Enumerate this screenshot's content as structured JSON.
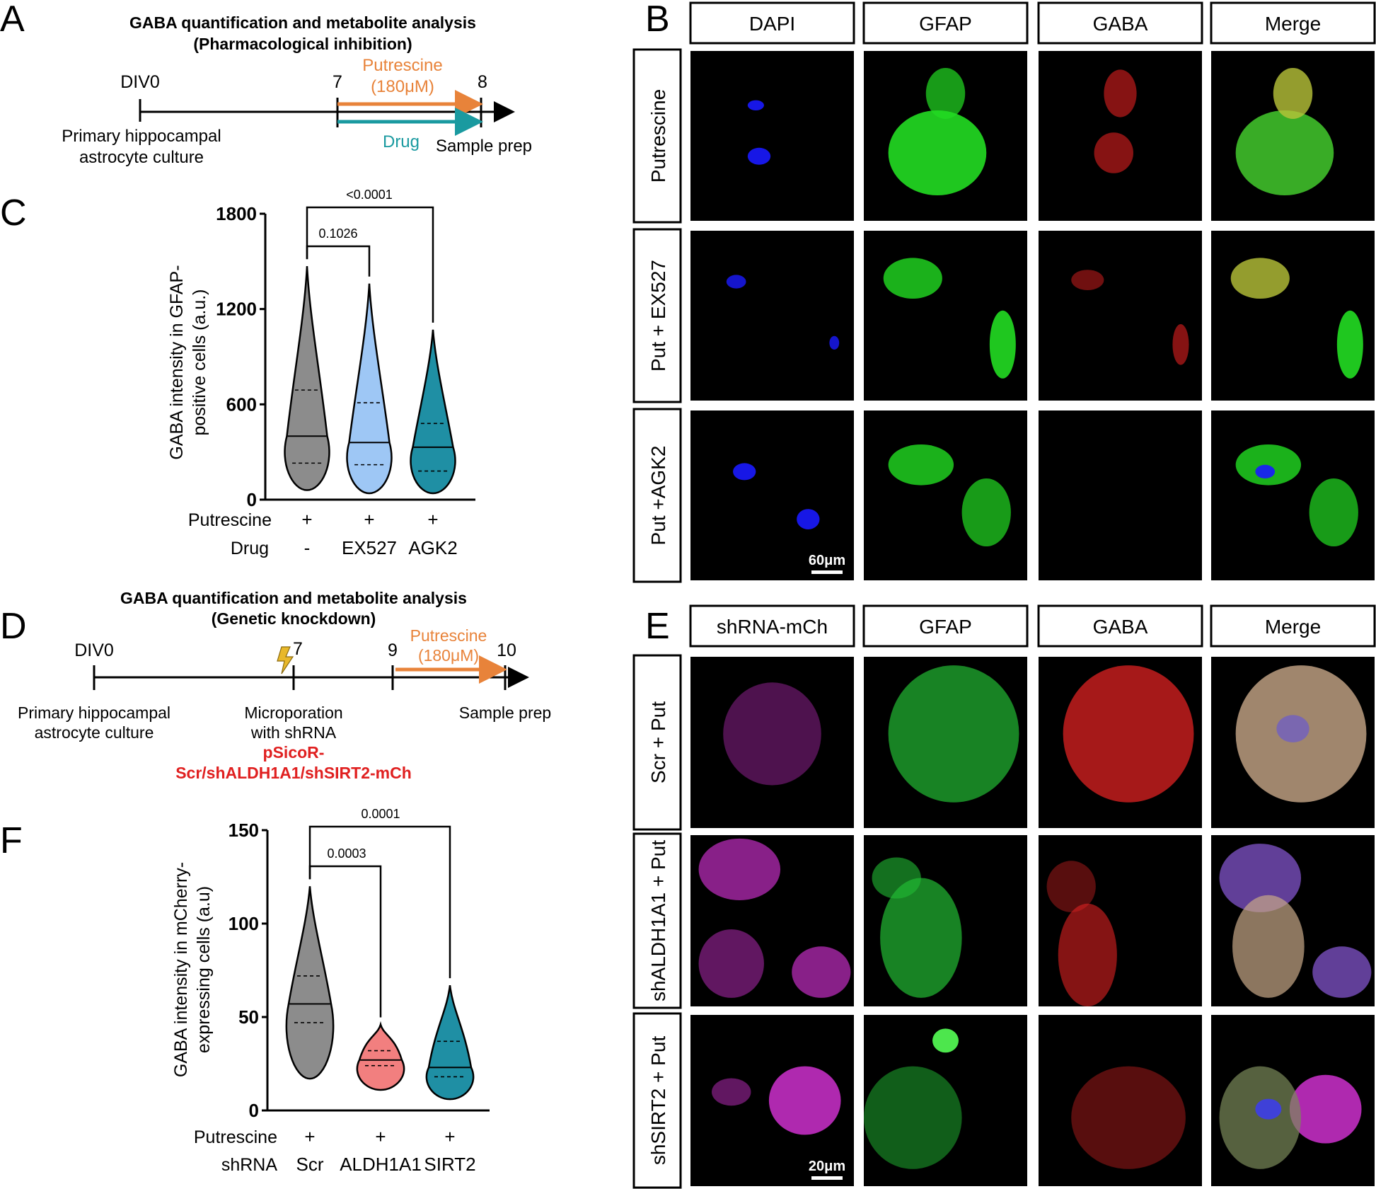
{
  "panel_letters": [
    "A",
    "B",
    "C",
    "D",
    "E",
    "F"
  ],
  "panelA": {
    "title_line1": "GABA quantification and metabolite analysis",
    "title_line2": "(Pharmacological inhibition)",
    "label_div0": "DIV0",
    "label_day7": "7",
    "label_day8": "8",
    "putrescine_label": "Putrescine",
    "putrescine_conc": "(180μM)",
    "drug_label": "Drug",
    "sample_prep": "Sample prep",
    "culture_line1": "Primary hippocampal",
    "culture_line2": "astrocyte culture",
    "colors": {
      "putrescine": "#e8833a",
      "drug": "#1a9aa0"
    }
  },
  "panelB": {
    "columns": [
      "DAPI",
      "GFAP",
      "GABA",
      "Merge"
    ],
    "rows": [
      "Putrescine",
      "Put + EX527",
      "Put +AGK2"
    ],
    "scale_bar": "60μm",
    "channel_colors": [
      "#1a1aff",
      "#22dd22",
      "#e02020",
      "#b9c43a"
    ]
  },
  "panelC": {
    "chart_data": {
      "type": "violin",
      "ylabel_line1": "GABA intensity in GFAP-",
      "ylabel_line2": "positive cells (a.u.)",
      "ylim": [
        0,
        1800
      ],
      "yticks": [
        "0",
        "600",
        "1200",
        "1800"
      ],
      "row_labels": [
        "Putrescine",
        "Drug"
      ],
      "conditions": [
        {
          "putrescine": "+",
          "drug": "-",
          "color": "#8c8c8c",
          "median": 400,
          "q1": 230,
          "q3": 690,
          "min": 60,
          "max": 1470
        },
        {
          "putrescine": "+",
          "drug": "EX527",
          "color": "#9ec7f5",
          "median": 360,
          "q1": 220,
          "q3": 610,
          "min": 40,
          "max": 1360
        },
        {
          "putrescine": "+",
          "drug": "AGK2",
          "color": "#1f8fa4",
          "median": 330,
          "q1": 180,
          "q3": 480,
          "min": 40,
          "max": 1070
        }
      ],
      "comparisons": [
        {
          "pair": [
            0,
            1
          ],
          "p": "0.1026"
        },
        {
          "pair": [
            0,
            2
          ],
          "p": "<0.0001"
        }
      ]
    }
  },
  "panelD": {
    "title_line1": "GABA quantification and metabolite analysis",
    "title_line2": "(Genetic knockdown)",
    "label_div0": "DIV0",
    "label_day7": "7",
    "label_day9": "9",
    "label_day10": "10",
    "putrescine_label": "Putrescine",
    "putrescine_conc": "(180μM)",
    "culture_line1": "Primary hippocampal",
    "culture_line2": "astrocyte culture",
    "micro_line1": "Microporation",
    "micro_line2": "with shRNA",
    "construct_line1": "pSicoR-",
    "construct_line2": "Scr/shALDH1A1/shSIRT2-mCh",
    "sample_prep": "Sample prep",
    "colors": {
      "putrescine": "#e8833a",
      "construct": "#e02020",
      "bolt": "#e8b82a"
    }
  },
  "panelE": {
    "columns": [
      "shRNA-mCh",
      "GFAP",
      "GABA",
      "Merge"
    ],
    "rows": [
      "Scr + Put",
      "shALDH1A1 + Put",
      "shSIRT2 + Put"
    ],
    "scale_bar": "20μm",
    "channel_colors": [
      "#c22dc2",
      "#22bb33",
      "#dd2222",
      "#c8a888"
    ]
  },
  "panelF": {
    "chart_data": {
      "type": "violin",
      "ylabel_line1": "GABA intensity in mCherry-",
      "ylabel_line2": "expressing cells (a.u)",
      "ylim": [
        0,
        150
      ],
      "yticks": [
        "0",
        "50",
        "100",
        "150"
      ],
      "row_labels": [
        "Putrescine",
        "shRNA"
      ],
      "conditions": [
        {
          "putrescine": "+",
          "shrna": "Scr",
          "color": "#8c8c8c",
          "median": 57,
          "q1": 47,
          "q3": 72,
          "min": 17,
          "max": 120
        },
        {
          "putrescine": "+",
          "shrna": "ALDH1A1",
          "color": "#f27f7f",
          "median": 27,
          "q1": 24,
          "q3": 32,
          "min": 11,
          "max": 46
        },
        {
          "putrescine": "+",
          "shrna": "SIRT2",
          "color": "#1f8fa4",
          "median": 23,
          "q1": 18,
          "q3": 37,
          "min": 6,
          "max": 67
        }
      ],
      "comparisons": [
        {
          "pair": [
            0,
            1
          ],
          "p": "0.0003"
        },
        {
          "pair": [
            0,
            2
          ],
          "p": "0.0001"
        }
      ]
    }
  }
}
